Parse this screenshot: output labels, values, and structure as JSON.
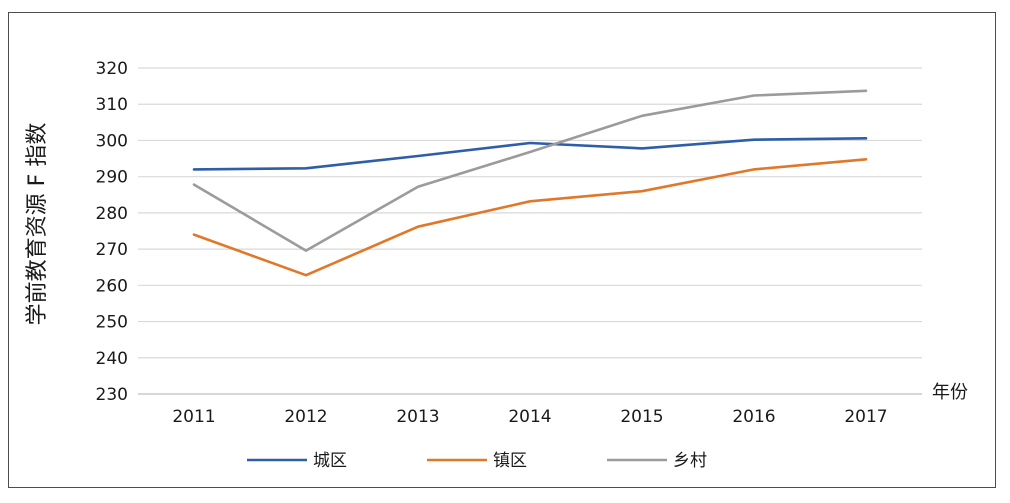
{
  "chart_data": {
    "type": "line",
    "title": "",
    "ylabel": "学前教育资源 F 指数",
    "xlabel": "年份",
    "categories": [
      "2011",
      "2012",
      "2013",
      "2014",
      "2015",
      "2016",
      "2017"
    ],
    "ylim": [
      230,
      320
    ],
    "yticks": [
      230,
      240,
      250,
      260,
      270,
      280,
      290,
      300,
      310,
      320
    ],
    "grid": true,
    "legend_position": "bottom",
    "series": [
      {
        "name": "城区",
        "color": "#2e5ea8",
        "values": [
          292.0,
          292.3,
          295.7,
          299.3,
          297.8,
          300.2,
          300.6
        ]
      },
      {
        "name": "镇区",
        "color": "#e0782b",
        "values": [
          274.0,
          262.8,
          276.2,
          283.2,
          286.0,
          292.0,
          294.8
        ]
      },
      {
        "name": "乡村",
        "color": "#9b9b9b",
        "values": [
          287.8,
          269.6,
          287.2,
          296.8,
          306.8,
          312.4,
          313.7
        ]
      }
    ]
  }
}
